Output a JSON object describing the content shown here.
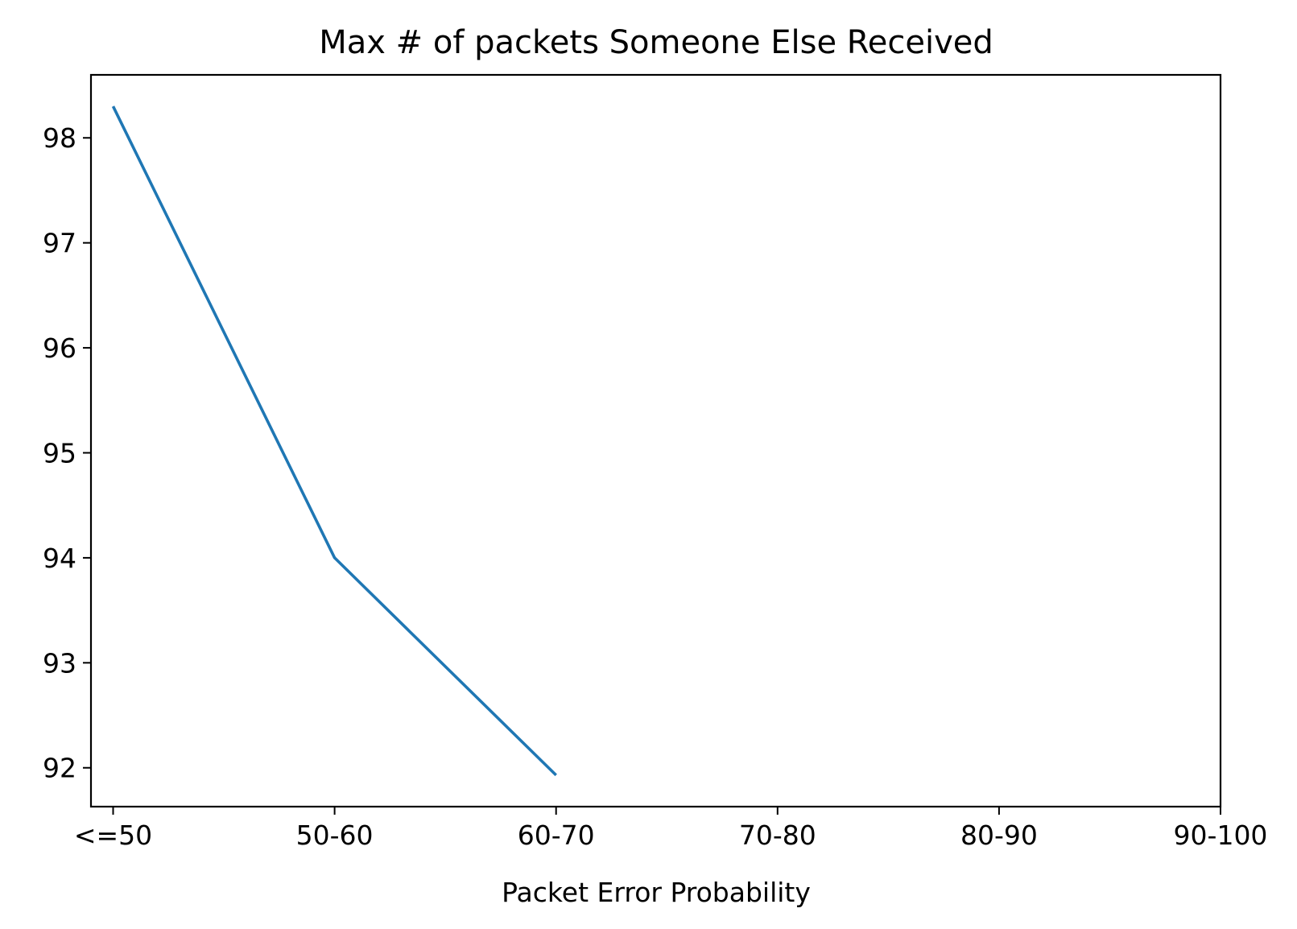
{
  "chart_data": {
    "type": "line",
    "title": "Max # of packets Someone Else Received",
    "xlabel": "Packet Error Probability",
    "ylabel": "",
    "categories": [
      "<=50",
      "50-60",
      "60-70",
      "70-80",
      "80-90",
      "90-100"
    ],
    "series": [
      {
        "color": "#1f77b4",
        "values": [
          98.3,
          94.0,
          91.93,
          null,
          null,
          null
        ]
      }
    ],
    "yticks": [
      92,
      93,
      94,
      95,
      96,
      97,
      98
    ],
    "ylim": [
      91.63,
      98.6
    ],
    "xlim": [
      -0.1,
      5.0
    ],
    "grid": false,
    "legend": "none"
  }
}
